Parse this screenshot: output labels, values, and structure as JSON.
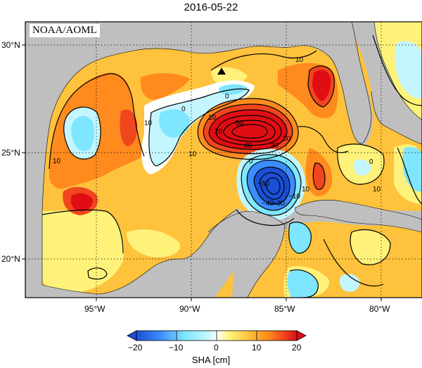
{
  "title": "2016-05-22",
  "source_label": "NOAA/AOML",
  "lat_labels": [
    "30°N",
    "25°N",
    "20°N"
  ],
  "lon_labels": [
    "95°W",
    "90°W",
    "85°W",
    "80°W"
  ],
  "colorbar": {
    "label": "SHA [cm]",
    "tick_labels": [
      "−20",
      "−10",
      "0",
      "10",
      "20"
    ]
  },
  "contour_labels": [
    "0",
    "0",
    "0",
    "0",
    "10",
    "10",
    "10",
    "10",
    "10",
    "10",
    "20",
    "20",
    "30",
    "40",
    "50",
    "−40",
    "−30",
    "−50",
    "−10",
    "10"
  ],
  "colors": {
    "land": "#bfbfbf",
    "deep_blue": "#1a4fd6",
    "blue": "#3c8dff",
    "cyan": "#7fe6ff",
    "light_cyan": "#c4f6ff",
    "white": "#ffffff",
    "yellow": "#fff27a",
    "light_orange": "#ffc23c",
    "orange": "#ff8a1e",
    "red_orange": "#f0461e",
    "red": "#e10d14"
  },
  "marker_icon": "triangle-marker-icon"
}
